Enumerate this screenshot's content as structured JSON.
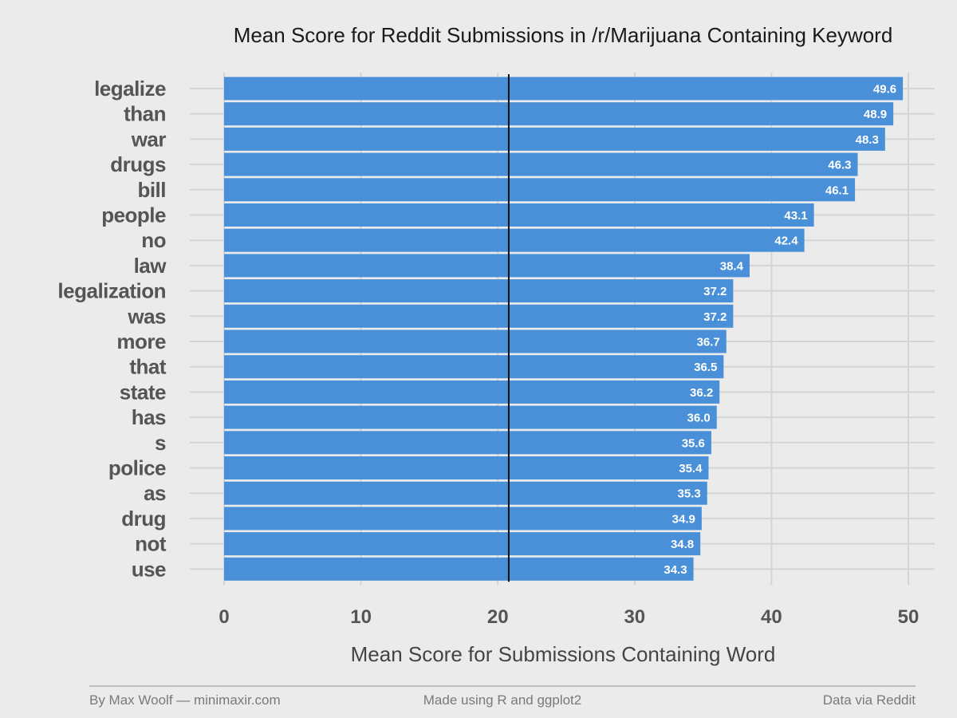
{
  "chart_data": {
    "type": "bar",
    "orientation": "horizontal",
    "title": "Mean Score for Reddit Submissions in /r/Marijuana Containing Keyword",
    "xlabel": "Mean Score for Submissions Containing Word",
    "ylabel": "",
    "categories": [
      "legalize",
      "than",
      "war",
      "drugs",
      "bill",
      "people",
      "no",
      "law",
      "legalization",
      "was",
      "more",
      "that",
      "state",
      "has",
      "s",
      "police",
      "as",
      "drug",
      "not",
      "use"
    ],
    "values": [
      49.6,
      48.9,
      48.3,
      46.3,
      46.1,
      43.1,
      42.4,
      38.4,
      37.2,
      37.2,
      36.7,
      36.5,
      36.2,
      36.0,
      35.6,
      35.4,
      35.3,
      34.9,
      34.8,
      34.3
    ],
    "value_labels": [
      "49.6",
      "48.9",
      "48.3",
      "46.3",
      "46.1",
      "43.1",
      "42.4",
      "38.4",
      "37.2",
      "37.2",
      "36.7",
      "36.5",
      "36.2",
      "36.0",
      "35.6",
      "35.4",
      "35.3",
      "34.9",
      "34.8",
      "34.3"
    ],
    "xlim": [
      0,
      50
    ],
    "xticks": [
      0,
      10,
      20,
      30,
      40,
      50
    ],
    "xtick_labels": [
      "0",
      "10",
      "20",
      "30",
      "40",
      "50"
    ],
    "reference_line": 20.8,
    "grid": true,
    "legend": "none"
  },
  "footer": {
    "left": "By Max Woolf — minimaxir.com",
    "center": "Made using R and ggplot2",
    "right": "Data via Reddit"
  },
  "colors": {
    "background": "#ebebeb",
    "bar": "#4a90d9",
    "gridline": "#d4d4d4",
    "reference_line": "#111111",
    "footer_rule": "#b0b0b0",
    "data_label": "#ffffff"
  }
}
